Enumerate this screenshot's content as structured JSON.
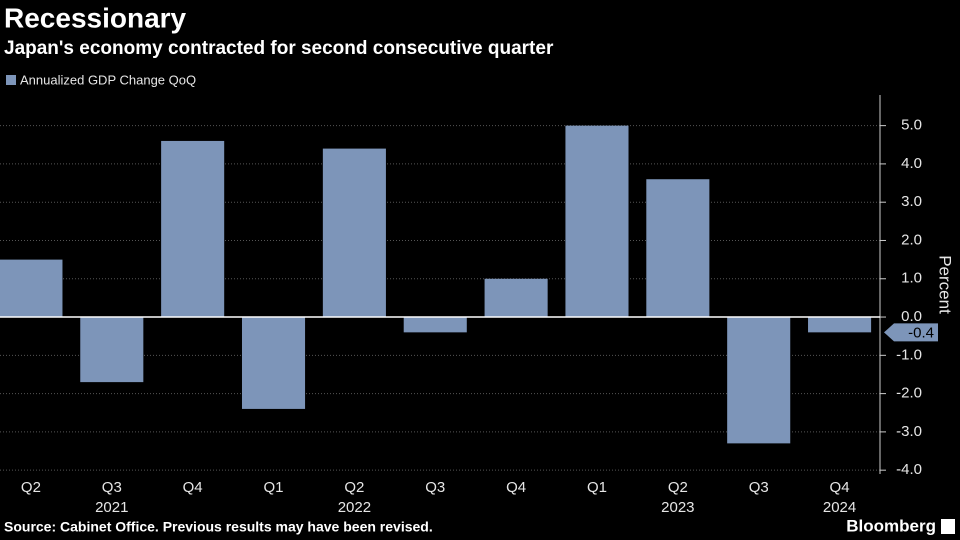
{
  "chart_data": {
    "type": "bar",
    "title": "Recessionary",
    "subtitle": "Japan's economy contracted for second consecutive quarter",
    "source": "Source: Cabinet Office. Previous results may have been revised.",
    "brand": "Bloomberg",
    "y_label": "Percent",
    "categories": [
      "Q2",
      "Q3",
      "Q4",
      "Q1",
      "Q2",
      "Q3",
      "Q4",
      "Q1",
      "Q2",
      "Q3",
      "Q4"
    ],
    "years": [
      null,
      "2021",
      null,
      null,
      "2022",
      null,
      null,
      null,
      "2023",
      null,
      "2024"
    ],
    "series": [
      {
        "name": "Annualized GDP Change QoQ",
        "color": "#7d95b9",
        "values": [
          1.5,
          -1.7,
          4.6,
          -2.4,
          4.4,
          -0.4,
          1.0,
          5.0,
          3.6,
          -3.3,
          -0.4
        ]
      }
    ],
    "label_last": true,
    "ylim": [
      -4.1,
      5.8
    ],
    "yticks": [
      {
        "value": 5,
        "label": "5.0"
      },
      {
        "value": 4,
        "label": "4.0"
      },
      {
        "value": 3,
        "label": "3.0"
      },
      {
        "value": 2,
        "label": "2.0"
      },
      {
        "value": 1,
        "label": "1.0"
      },
      {
        "value": 0,
        "label": "0.0"
      },
      {
        "value": -1,
        "label": "-1.0"
      },
      {
        "value": -2,
        "label": "-2.0"
      },
      {
        "value": -3,
        "label": "-3.0"
      },
      {
        "value": -4,
        "label": "-4.0"
      }
    ],
    "y_axis_side": "right",
    "grid": true
  }
}
